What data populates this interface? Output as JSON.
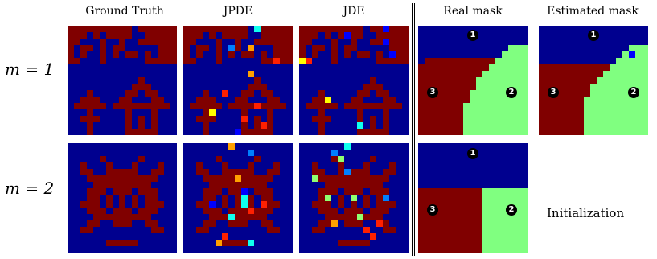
{
  "columns": {
    "ground_truth": "Ground Truth",
    "jpde": "JPDE",
    "jde": "JDE",
    "real_mask": "Real mask",
    "estimated_mask": "Estimated mask"
  },
  "rows": [
    {
      "label": "m = 1"
    },
    {
      "label": "m = 2"
    }
  ],
  "region_markers": [
    "1",
    "2",
    "3"
  ],
  "init_label": "Initialization",
  "colors": {
    "background": "#00008f",
    "foreground": "#800000",
    "green": "#80ff80",
    "cyan": "#10ffef",
    "light_blue": "#0080ff",
    "orange": "#ffa000",
    "yellow": "#ffff00",
    "red": "#ff2000",
    "blue": "#0000ff",
    "lime": "#90ff70",
    "marker": "#000000"
  }
}
